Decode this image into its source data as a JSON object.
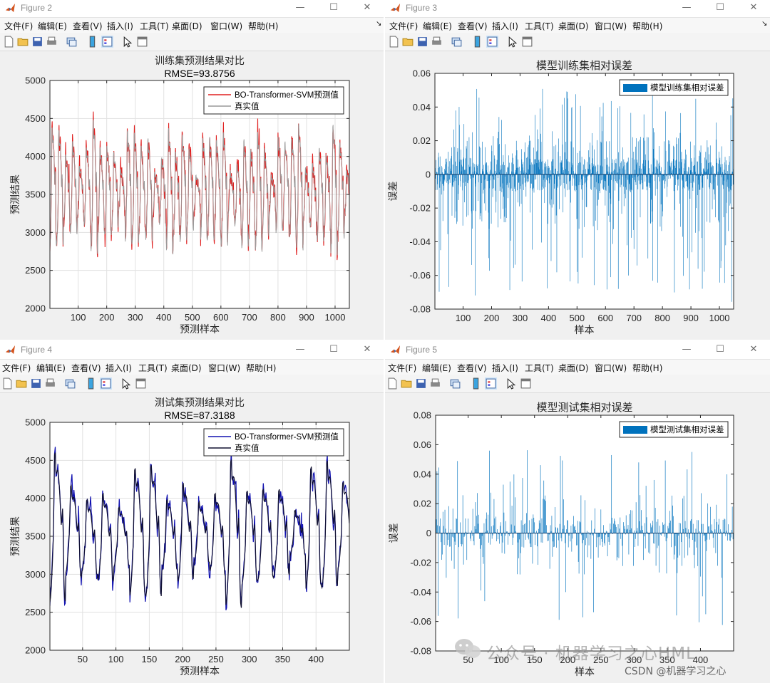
{
  "menu": [
    "文件(F)",
    "编辑(E)",
    "查看(V)",
    "插入(I)",
    "工具(T)",
    "桌面(D)",
    "窗口(W)",
    "帮助(H)"
  ],
  "window_buttons": {
    "minimize": "—",
    "maximize": "☐",
    "close": "✕"
  },
  "windows": [
    {
      "title": "Figure 2"
    },
    {
      "title": "Figure 3"
    },
    {
      "title": "Figure 4"
    },
    {
      "title": "Figure 5"
    }
  ],
  "watermark": {
    "text": "公众号 · 机器学习之心HML",
    "csdn": "CSDN @机器学习之心"
  },
  "chart_data": [
    {
      "type": "line",
      "title": "训练集预测结果对比",
      "subtitle": "RMSE=93.8756",
      "xlabel": "预测样本",
      "ylabel": "预测结果",
      "xlim": [
        1,
        1050
      ],
      "ylim": [
        2000,
        5000
      ],
      "xticks": [
        100,
        200,
        300,
        400,
        500,
        600,
        700,
        800,
        900,
        1000
      ],
      "yticks": [
        2000,
        2500,
        3000,
        3500,
        4000,
        4500,
        5000
      ],
      "grid": true,
      "legend_position": "top-right",
      "series": [
        {
          "name": "BO-Transformer-SVM预测值",
          "color": "#e02020"
        },
        {
          "name": "真实值",
          "color": "#999999"
        }
      ],
      "n_samples": 1050,
      "pattern": {
        "period": 24,
        "approx_min": 2350,
        "approx_max": 4800,
        "mean": 3500
      }
    },
    {
      "type": "bar",
      "title": "模型训练集相对误差",
      "xlabel": "样本",
      "ylabel": "误差",
      "xlim": [
        1,
        1050
      ],
      "ylim": [
        -0.08,
        0.06
      ],
      "xticks": [
        100,
        200,
        300,
        400,
        500,
        600,
        700,
        800,
        900,
        1000
      ],
      "yticks": [
        -0.08,
        -0.06,
        -0.04,
        -0.02,
        0,
        0.02,
        0.04,
        0.06
      ],
      "grid": false,
      "legend_position": "top-right",
      "series": [
        {
          "name": "模型训练集相对误差",
          "color": "#0072bd"
        }
      ],
      "n_samples": 1050,
      "pattern": {
        "approx_max": 0.052,
        "approx_min": -0.076
      }
    },
    {
      "type": "line",
      "title": "测试集预测结果对比",
      "subtitle": "RMSE=87.3188",
      "xlabel": "预测样本",
      "ylabel": "预测结果",
      "xlim": [
        1,
        450
      ],
      "ylim": [
        2000,
        5000
      ],
      "xticks": [
        50,
        100,
        150,
        200,
        250,
        300,
        350,
        400
      ],
      "yticks": [
        2000,
        2500,
        3000,
        3500,
        4000,
        4500,
        5000
      ],
      "grid": true,
      "legend_position": "top-right",
      "series": [
        {
          "name": "BO-Transformer-SVM预测值",
          "color": "#1010b0"
        },
        {
          "name": "真实值",
          "color": "#101030"
        }
      ],
      "n_samples": 450,
      "pattern": {
        "period": 24,
        "approx_min": 2300,
        "approx_max": 4950,
        "mean": 3500
      }
    },
    {
      "type": "bar",
      "title": "模型测试集相对误差",
      "xlabel": "样本",
      "ylabel": "误差",
      "xlim": [
        1,
        450
      ],
      "ylim": [
        -0.08,
        0.08
      ],
      "xticks": [
        50,
        100,
        150,
        200,
        250,
        300,
        350,
        400
      ],
      "yticks": [
        -0.08,
        -0.06,
        -0.04,
        -0.02,
        0,
        0.02,
        0.04,
        0.06,
        0.08
      ],
      "grid": false,
      "legend_position": "top-right",
      "series": [
        {
          "name": "模型测试集相对误差",
          "color": "#0072bd"
        }
      ],
      "n_samples": 450,
      "pattern": {
        "approx_max": 0.061,
        "approx_min": -0.063
      }
    }
  ]
}
